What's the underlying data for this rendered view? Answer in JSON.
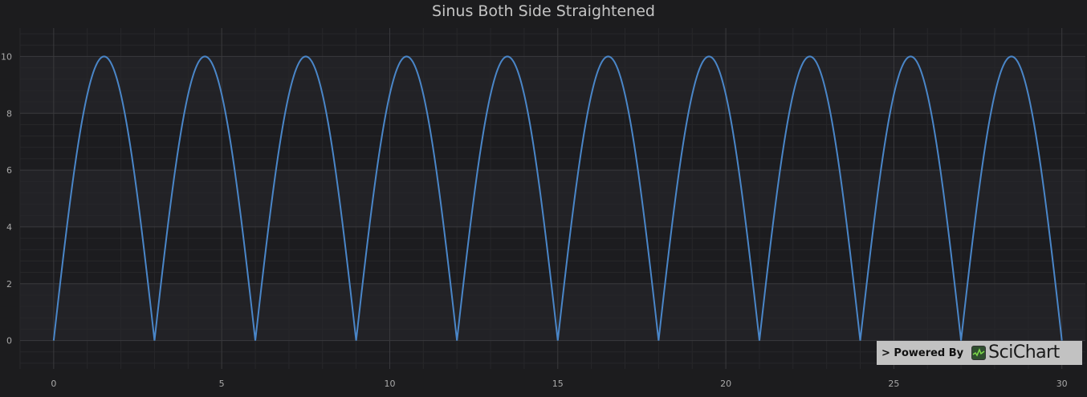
{
  "chart_data": {
    "type": "line",
    "title": "Sinus Both Side Straightened",
    "xlabel": "",
    "ylabel": "",
    "xlim": [
      -1.0,
      30.7
    ],
    "ylim": [
      -1.0,
      11.0
    ],
    "x_ticks": [
      0,
      5,
      10,
      15,
      20,
      25,
      30
    ],
    "y_ticks": [
      0,
      2,
      4,
      6,
      8,
      10
    ],
    "x_tick_labels": [
      "0",
      "5",
      "10",
      "15",
      "20",
      "25",
      "30"
    ],
    "y_tick_labels": [
      "0",
      "2",
      "4",
      "6",
      "8",
      "10"
    ],
    "grid": true,
    "legend": "none",
    "series": [
      {
        "color": "#4a86c8",
        "function": "y = |10 * sin(pi * x / 3)|",
        "x_range": [
          0,
          30
        ],
        "peaks": [
          {
            "x": 1.5,
            "y": 10
          },
          {
            "x": 4.5,
            "y": 10
          },
          {
            "x": 7.5,
            "y": 10
          },
          {
            "x": 10.5,
            "y": 10
          },
          {
            "x": 13.5,
            "y": 10
          },
          {
            "x": 16.5,
            "y": 10
          },
          {
            "x": 19.5,
            "y": 10
          },
          {
            "x": 22.5,
            "y": 10
          },
          {
            "x": 25.5,
            "y": 10
          },
          {
            "x": 28.5,
            "y": 10
          }
        ],
        "zeros": [
          0,
          3,
          6,
          9,
          12,
          15,
          18,
          21,
          24,
          27,
          30
        ]
      }
    ]
  },
  "watermark": {
    "text": "> Powered By",
    "logo_name": "SciChart",
    "logo_icon": "scichart-logo-icon"
  },
  "colors": {
    "background": "#1c1c1e",
    "plot_band_dark": "#1c1c1f",
    "plot_band_light": "#222226",
    "grid_major": "#3a3a3d",
    "grid_minor": "#27272a",
    "line": "#4a86c8"
  }
}
